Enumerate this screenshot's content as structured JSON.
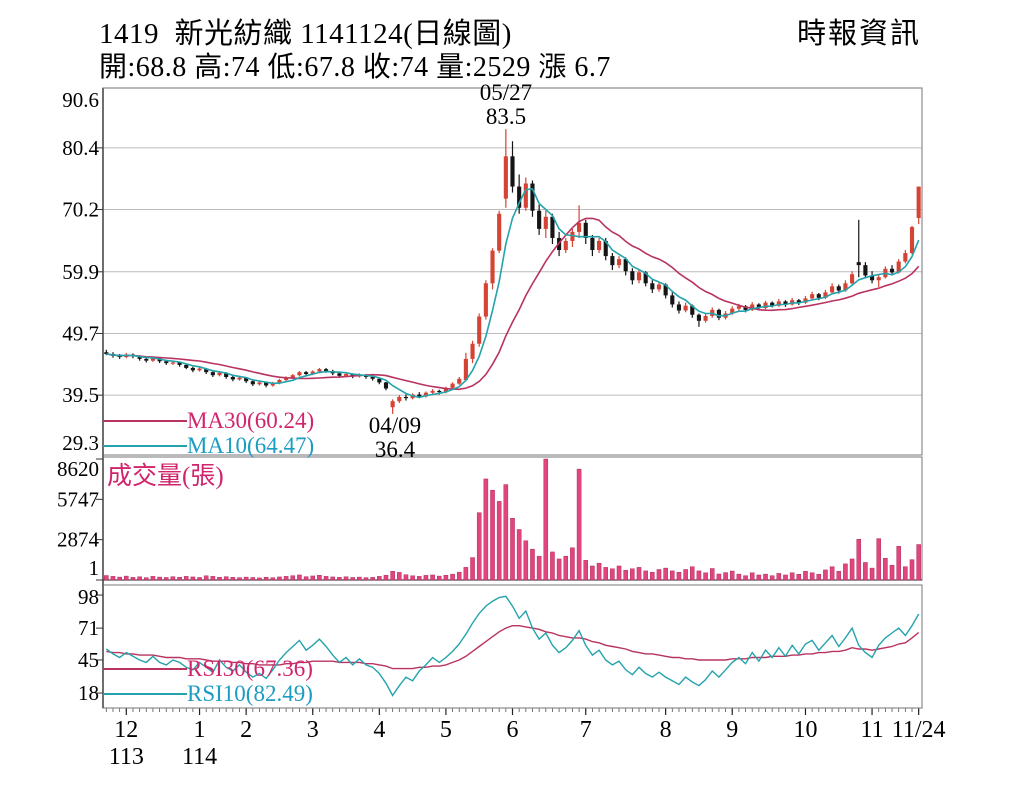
{
  "header": {
    "title": "1419  新光紡織 1141124(日線圖)",
    "source": "時報資訊",
    "quote": "開:68.8 高:74 低:67.8 收:74 量:2529 漲 6.7"
  },
  "annotations": {
    "peak": {
      "date": "05/27",
      "value": "83.5"
    },
    "trough": {
      "date": "04/09",
      "value": "36.4"
    }
  },
  "chart_data": {
    "type": "candlestick",
    "title": "1419 新光紡織 1141124(日線圖)",
    "colors": {
      "up": "#d54334",
      "down": "#151515",
      "ma30": "#b8335f",
      "ma10": "#24a3ac",
      "pink_text": "#d0246c",
      "cyan_text": "#1b9cc2",
      "volume_bar": "#e0457e",
      "volume_bar_edge": "#a81e50",
      "grid": "#bcbcbc",
      "border": "#8c8c8c",
      "axis": "#333333"
    },
    "x_axis": {
      "month_labels": [
        {
          "text": "12",
          "index": 3
        },
        {
          "text": "1",
          "index": 14
        },
        {
          "text": "2",
          "index": 21
        },
        {
          "text": "3",
          "index": 31
        },
        {
          "text": "4",
          "index": 41
        },
        {
          "text": "5",
          "index": 51
        },
        {
          "text": "6",
          "index": 61
        },
        {
          "text": "7",
          "index": 72
        },
        {
          "text": "8",
          "index": 84
        },
        {
          "text": "9",
          "index": 94
        },
        {
          "text": "10",
          "index": 105
        },
        {
          "text": "11",
          "index": 115
        },
        {
          "text": "11/24",
          "index": 122
        }
      ],
      "year_labels": [
        {
          "text": "113",
          "index": 3
        },
        {
          "text": "114",
          "index": 14
        }
      ]
    },
    "price": {
      "y_ticks": [
        90.6,
        80.4,
        70.2,
        59.9,
        49.7,
        39.5,
        29.3
      ],
      "y_range": [
        29.6,
        90.3
      ],
      "ma": [
        {
          "label": "MA30(60.24)",
          "window": 15,
          "color_key": "ma30"
        },
        {
          "label": "MA10(64.47)",
          "window": 5,
          "color_key": "ma10"
        }
      ],
      "candles": [
        [
          46.6,
          47.0,
          46.1,
          46.3
        ],
        [
          46.3,
          46.6,
          45.7,
          46.0
        ],
        [
          46.0,
          46.3,
          45.5,
          45.8
        ],
        [
          45.8,
          46.5,
          45.6,
          46.2
        ],
        [
          46.2,
          46.4,
          45.6,
          45.9
        ],
        [
          45.9,
          46.1,
          45.2,
          45.5
        ],
        [
          45.5,
          45.8,
          44.9,
          45.2
        ],
        [
          45.2,
          45.9,
          45.0,
          45.6
        ],
        [
          45.6,
          45.8,
          44.8,
          45.1
        ],
        [
          45.1,
          45.3,
          44.5,
          44.8
        ],
        [
          44.8,
          45.2,
          44.5,
          44.9
        ],
        [
          44.9,
          45.0,
          44.2,
          44.5
        ],
        [
          44.5,
          44.7,
          43.8,
          44.0
        ],
        [
          44.0,
          44.2,
          43.3,
          43.6
        ],
        [
          43.6,
          44.1,
          43.4,
          43.9
        ],
        [
          43.9,
          44.0,
          43.0,
          43.3
        ],
        [
          43.3,
          43.5,
          42.5,
          42.8
        ],
        [
          42.8,
          43.4,
          42.6,
          43.2
        ],
        [
          43.2,
          43.3,
          42.2,
          42.5
        ],
        [
          42.5,
          42.7,
          41.8,
          42.1
        ],
        [
          42.1,
          42.6,
          41.9,
          42.4
        ],
        [
          42.4,
          42.5,
          41.5,
          41.8
        ],
        [
          41.8,
          42.0,
          41.0,
          41.3
        ],
        [
          41.3,
          41.8,
          41.1,
          41.6
        ],
        [
          41.6,
          41.7,
          40.8,
          41.1
        ],
        [
          41.1,
          41.7,
          40.9,
          41.5
        ],
        [
          41.5,
          42.2,
          41.3,
          42.0
        ],
        [
          42.0,
          42.6,
          41.8,
          42.4
        ],
        [
          42.4,
          43.0,
          42.2,
          42.8
        ],
        [
          42.8,
          43.5,
          42.6,
          43.3
        ],
        [
          43.3,
          43.5,
          42.7,
          43.0
        ],
        [
          43.0,
          43.6,
          42.8,
          43.4
        ],
        [
          43.4,
          44.0,
          43.2,
          43.8
        ],
        [
          43.8,
          44.0,
          43.2,
          43.5
        ],
        [
          43.5,
          43.7,
          42.8,
          43.1
        ],
        [
          43.1,
          43.3,
          42.4,
          42.7
        ],
        [
          42.7,
          43.2,
          42.5,
          43.0
        ],
        [
          43.0,
          43.1,
          42.3,
          42.6
        ],
        [
          42.6,
          43.1,
          42.4,
          42.9
        ],
        [
          42.9,
          43.0,
          42.2,
          42.5
        ],
        [
          42.5,
          42.7,
          41.9,
          42.2
        ],
        [
          42.2,
          42.3,
          41.3,
          41.6
        ],
        [
          41.6,
          41.7,
          40.3,
          40.6
        ],
        [
          37.5,
          38.8,
          36.4,
          38.5
        ],
        [
          38.5,
          39.5,
          38.2,
          39.2
        ],
        [
          39.2,
          39.6,
          38.6,
          39.0
        ],
        [
          39.0,
          39.8,
          38.8,
          39.6
        ],
        [
          39.6,
          40.0,
          39.0,
          39.3
        ],
        [
          39.3,
          40.1,
          39.1,
          39.9
        ],
        [
          39.9,
          40.5,
          39.7,
          40.2
        ],
        [
          40.2,
          40.4,
          39.6,
          40.0
        ],
        [
          40.0,
          40.9,
          39.8,
          40.7
        ],
        [
          40.7,
          41.6,
          40.5,
          41.4
        ],
        [
          41.4,
          42.5,
          41.2,
          42.2
        ],
        [
          42.0,
          46.5,
          41.8,
          45.5
        ],
        [
          45.5,
          48.5,
          44.8,
          48.0
        ],
        [
          48.0,
          53.0,
          47.5,
          52.5
        ],
        [
          52.5,
          58.5,
          52.0,
          58.0
        ],
        [
          58.0,
          63.8,
          57.0,
          63.4
        ],
        [
          63.4,
          70.0,
          63.0,
          69.5
        ],
        [
          72.0,
          83.5,
          70.5,
          79.0
        ],
        [
          79.0,
          81.5,
          73.0,
          74.0
        ],
        [
          74.0,
          76.0,
          69.5,
          70.5
        ],
        [
          70.5,
          75.5,
          70.0,
          74.5
        ],
        [
          74.5,
          75.0,
          69.0,
          70.0
        ],
        [
          70.0,
          71.0,
          66.0,
          67.0
        ],
        [
          67.0,
          70.0,
          65.5,
          69.0
        ],
        [
          69.0,
          69.5,
          64.5,
          65.5
        ],
        [
          65.5,
          66.5,
          62.5,
          63.5
        ],
        [
          63.5,
          65.5,
          63.0,
          65.0
        ],
        [
          65.0,
          67.0,
          64.0,
          66.5
        ],
        [
          66.5,
          70.9,
          65.5,
          68.0
        ],
        [
          68.0,
          68.5,
          64.5,
          65.5
        ],
        [
          65.5,
          66.0,
          62.5,
          63.5
        ],
        [
          63.5,
          65.5,
          63.0,
          65.0
        ],
        [
          65.0,
          65.5,
          61.8,
          62.5
        ],
        [
          62.5,
          63.0,
          60.2,
          61.0
        ],
        [
          61.0,
          62.5,
          60.5,
          62.0
        ],
        [
          62.0,
          62.3,
          59.3,
          60.0
        ],
        [
          60.0,
          60.5,
          57.8,
          58.5
        ],
        [
          58.5,
          60.2,
          58.0,
          59.8
        ],
        [
          59.8,
          60.0,
          57.5,
          58.0
        ],
        [
          58.0,
          58.5,
          56.4,
          57.0
        ],
        [
          57.0,
          58.2,
          56.6,
          57.8
        ],
        [
          57.8,
          58.0,
          55.5,
          56.0
        ],
        [
          56.0,
          56.5,
          54.0,
          54.5
        ],
        [
          54.5,
          55.0,
          53.0,
          53.5
        ],
        [
          53.5,
          54.8,
          53.2,
          54.3
        ],
        [
          54.3,
          54.5,
          52.3,
          52.8
        ],
        [
          52.8,
          53.0,
          50.8,
          51.8
        ],
        [
          51.8,
          53.0,
          51.5,
          52.6
        ],
        [
          52.6,
          54.0,
          52.3,
          53.6
        ],
        [
          53.6,
          53.8,
          51.9,
          52.3
        ],
        [
          52.3,
          53.4,
          52.0,
          53.0
        ],
        [
          53.0,
          54.2,
          52.8,
          53.8
        ],
        [
          53.8,
          54.6,
          53.4,
          54.2
        ],
        [
          54.2,
          54.4,
          53.2,
          53.6
        ],
        [
          53.6,
          54.9,
          53.4,
          54.5
        ],
        [
          54.5,
          54.7,
          53.5,
          53.9
        ],
        [
          53.9,
          55.1,
          53.7,
          54.8
        ],
        [
          54.8,
          55.0,
          54.0,
          54.3
        ],
        [
          54.3,
          55.4,
          54.1,
          55.0
        ],
        [
          55.0,
          55.2,
          54.1,
          54.5
        ],
        [
          54.5,
          55.6,
          54.3,
          55.2
        ],
        [
          55.2,
          55.4,
          54.4,
          54.8
        ],
        [
          54.8,
          55.9,
          54.6,
          55.5
        ],
        [
          55.5,
          56.6,
          55.3,
          56.2
        ],
        [
          56.2,
          56.4,
          55.2,
          55.6
        ],
        [
          55.6,
          56.9,
          55.4,
          56.5
        ],
        [
          56.5,
          58.0,
          56.3,
          57.5
        ],
        [
          57.5,
          57.8,
          56.3,
          56.8
        ],
        [
          56.8,
          58.5,
          56.6,
          58.0
        ],
        [
          58.0,
          60.0,
          57.6,
          59.5
        ],
        [
          61.5,
          68.5,
          59.0,
          61.0
        ],
        [
          61.0,
          61.5,
          58.8,
          59.3
        ],
        [
          59.3,
          60.0,
          58.0,
          58.5
        ],
        [
          58.5,
          59.5,
          57.4,
          59.0
        ],
        [
          59.0,
          60.8,
          58.8,
          60.4
        ],
        [
          60.4,
          61.0,
          59.3,
          59.8
        ],
        [
          59.8,
          62.0,
          59.6,
          61.6
        ],
        [
          61.6,
          63.5,
          61.3,
          63.0
        ],
        [
          63.0,
          67.5,
          62.8,
          67.3
        ],
        [
          68.8,
          74.0,
          67.8,
          74.0
        ]
      ]
    },
    "volume": {
      "label": "成交量(張)",
      "y_ticks": [
        8620,
        5747,
        2874,
        1
      ],
      "y_max": 8620,
      "values": [
        320,
        260,
        210,
        280,
        190,
        230,
        170,
        260,
        210,
        180,
        240,
        200,
        260,
        220,
        180,
        300,
        260,
        200,
        240,
        190,
        170,
        210,
        180,
        150,
        200,
        170,
        220,
        260,
        310,
        360,
        240,
        290,
        340,
        260,
        220,
        190,
        230,
        180,
        210,
        170,
        190,
        260,
        340,
        620,
        540,
        380,
        300,
        260,
        330,
        360,
        280,
        340,
        420,
        560,
        900,
        1600,
        4800,
        7200,
        6400,
        5600,
        6800,
        4400,
        3600,
        2800,
        2200,
        1700,
        8620,
        2000,
        1500,
        1700,
        2300,
        7900,
        1400,
        1000,
        1200,
        900,
        800,
        1000,
        700,
        800,
        900,
        650,
        550,
        750,
        850,
        650,
        550,
        750,
        950,
        650,
        520,
        820,
        430,
        530,
        640,
        420,
        310,
        520,
        360,
        420,
        310,
        470,
        360,
        520,
        410,
        620,
        520,
        410,
        720,
        950,
        620,
        1150,
        1500,
        2900,
        1250,
        850,
        2950,
        1550,
        1050,
        2400,
        950,
        1450,
        2529
      ]
    },
    "rsi": {
      "y_ticks": [
        98,
        71,
        45,
        18
      ],
      "y_range": [
        5.8,
        106.2
      ],
      "series": [
        {
          "label": "RSI30(67.36)",
          "color_key": "ma30",
          "values": [
            52,
            51,
            51,
            50,
            50,
            49,
            49,
            49,
            48,
            47,
            47,
            47,
            46,
            46,
            46,
            45,
            44,
            44,
            44,
            43,
            43,
            42,
            42,
            41,
            41,
            41,
            41,
            42,
            42,
            43,
            43,
            44,
            44,
            44,
            44,
            43,
            43,
            43,
            43,
            42,
            42,
            41,
            40,
            38,
            38,
            38,
            38,
            39,
            39,
            40,
            40,
            41,
            43,
            45,
            48,
            52,
            56,
            60,
            64,
            68,
            71,
            73,
            73,
            72,
            71,
            70,
            68,
            67,
            65,
            64,
            63,
            63,
            62,
            60,
            59,
            57,
            56,
            55,
            54,
            52,
            51,
            50,
            50,
            49,
            48,
            47,
            47,
            46,
            46,
            45,
            45,
            45,
            45,
            45,
            46,
            46,
            46,
            47,
            47,
            47,
            48,
            48,
            48,
            49,
            49,
            50,
            50,
            51,
            51,
            52,
            52,
            53,
            55,
            54,
            54,
            53,
            54,
            55,
            56,
            58,
            59,
            63,
            67.4
          ]
        },
        {
          "label": "RSI10(82.49)",
          "color_key": "ma10",
          "values": [
            54,
            50,
            47,
            51,
            48,
            45,
            43,
            48,
            43,
            41,
            45,
            43,
            39,
            37,
            43,
            39,
            35,
            45,
            39,
            36,
            41,
            35,
            31,
            34,
            30,
            37,
            45,
            51,
            56,
            61,
            53,
            57,
            62,
            56,
            49,
            43,
            47,
            41,
            46,
            41,
            39,
            34,
            26,
            16,
            24,
            31,
            28,
            36,
            41,
            47,
            43,
            47,
            52,
            58,
            66,
            75,
            83,
            89,
            93,
            96,
            97,
            89,
            79,
            85,
            71,
            62,
            67,
            57,
            51,
            55,
            61,
            69,
            57,
            49,
            53,
            45,
            41,
            44,
            37,
            33,
            39,
            34,
            31,
            35,
            31,
            28,
            25,
            31,
            27,
            24,
            29,
            36,
            31,
            37,
            43,
            47,
            42,
            51,
            44,
            53,
            47,
            55,
            48,
            57,
            50,
            58,
            61,
            53,
            59,
            65,
            56,
            63,
            71,
            57,
            51,
            47,
            57,
            63,
            67,
            71,
            65,
            73,
            82.5
          ]
        }
      ]
    }
  }
}
